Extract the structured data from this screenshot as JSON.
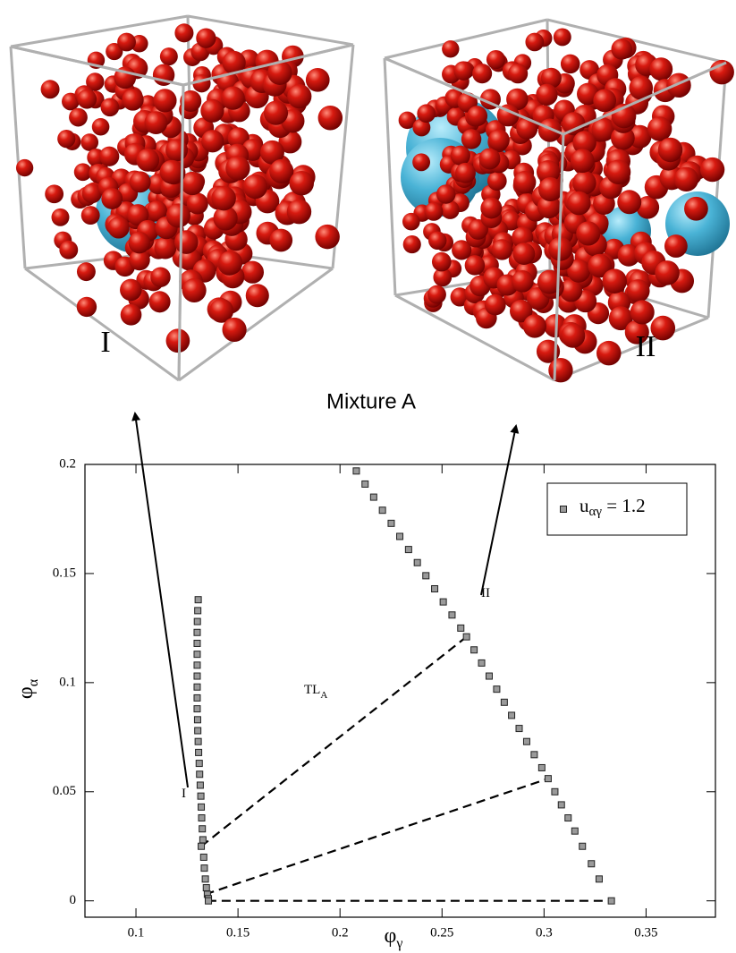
{
  "renderings": [
    {
      "label": "I"
    },
    {
      "label": "II"
    }
  ],
  "caption": "Mixture A",
  "chart_data": {
    "type": "scatter",
    "x_label": "φ",
    "x_label_sub": "γ",
    "y_label": "φ",
    "y_label_sub": "α",
    "xlim": [
      0.075,
      0.384
    ],
    "ylim": [
      -0.0075,
      0.2
    ],
    "xticks": [
      0.1,
      0.15,
      0.2,
      0.25,
      0.3,
      0.35
    ],
    "yticks": [
      0,
      0.05,
      0.1,
      0.15,
      0.2
    ],
    "legend_position": "upper right",
    "series": [
      {
        "name": "u",
        "name_sub": "αγ",
        "name_suffix": " = 1.2",
        "color": "#9a9a9a",
        "x": [
          0.1305,
          0.1303,
          0.1301,
          0.13,
          0.13,
          0.13,
          0.13,
          0.13,
          0.13,
          0.13,
          0.13,
          0.1302,
          0.1303,
          0.1305,
          0.1307,
          0.131,
          0.1312,
          0.1315,
          0.1318,
          0.132,
          0.1322,
          0.1325,
          0.1328,
          0.132,
          0.1332,
          0.1335,
          0.134,
          0.1345,
          0.135,
          0.1355,
          0.1355,
          0.208,
          0.2123,
          0.2165,
          0.2208,
          0.2251,
          0.2293,
          0.2336,
          0.2379,
          0.2421,
          0.2464,
          0.2506,
          0.2549,
          0.2592,
          0.262,
          0.2657,
          0.2694,
          0.2731,
          0.2768,
          0.2805,
          0.2841,
          0.2878,
          0.2915,
          0.2952,
          0.2989,
          0.302,
          0.3053,
          0.3085,
          0.3118,
          0.3151,
          0.3188,
          0.3232,
          0.327,
          0.333
        ],
        "values": [
          0.138,
          0.133,
          0.128,
          0.123,
          0.118,
          0.113,
          0.108,
          0.103,
          0.098,
          0.093,
          0.088,
          0.083,
          0.078,
          0.073,
          0.068,
          0.063,
          0.058,
          0.053,
          0.048,
          0.043,
          0.038,
          0.033,
          0.028,
          0.025,
          0.02,
          0.015,
          0.01,
          0.006,
          0.003,
          0.001,
          0,
          0.197,
          0.191,
          0.185,
          0.179,
          0.173,
          0.167,
          0.161,
          0.155,
          0.149,
          0.143,
          0.137,
          0.131,
          0.125,
          0.121,
          0.115,
          0.109,
          0.103,
          0.097,
          0.091,
          0.085,
          0.079,
          0.073,
          0.067,
          0.061,
          0.056,
          0.05,
          0.044,
          0.038,
          0.032,
          0.025,
          0.017,
          0.01,
          0
        ]
      }
    ],
    "tie_lines": [
      {
        "x": [
          0.132,
          0.262
        ],
        "values": [
          0.025,
          0.121
        ]
      },
      {
        "x": [
          0.134,
          0.302
        ],
        "values": [
          0.003,
          0.056
        ]
      },
      {
        "x": [
          0.135,
          0.333
        ],
        "values": [
          0,
          0
        ]
      }
    ],
    "annotations": [
      {
        "text": "I"
      },
      {
        "text": "II"
      },
      {
        "text": "TL",
        "sub": "A"
      }
    ]
  }
}
